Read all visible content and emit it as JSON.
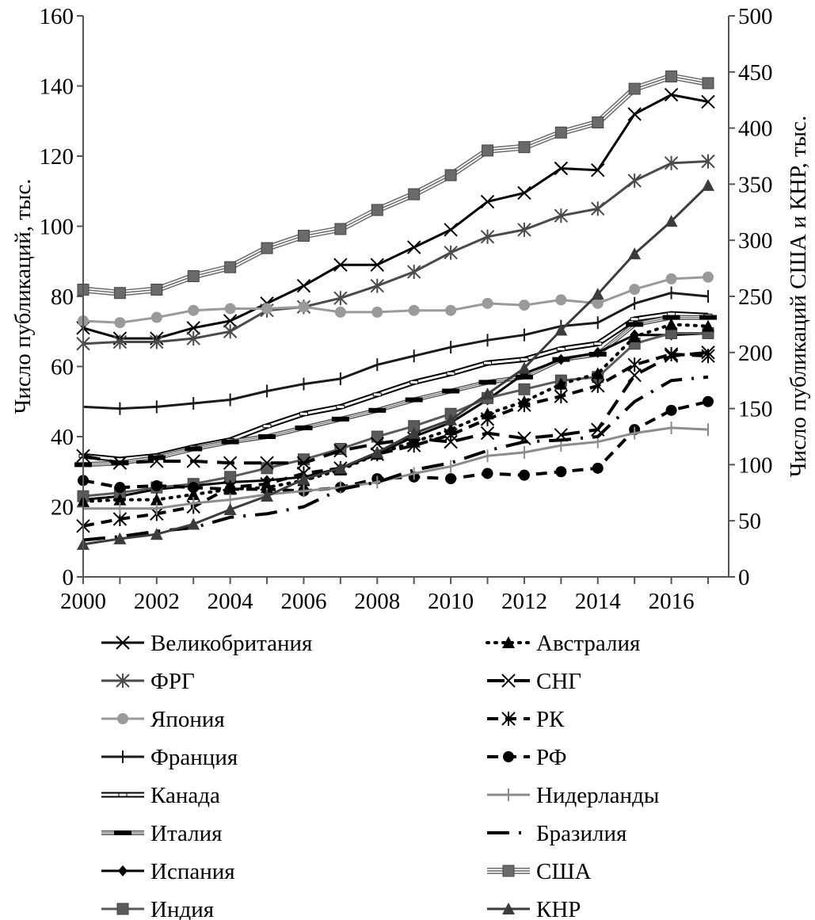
{
  "chart_data": {
    "type": "line",
    "title": "",
    "xlabel": "",
    "ylabel": "Число публикаций, тыс.",
    "y2label": "Число публикаций США и КНР, тыс.",
    "x": [
      2000,
      2001,
      2002,
      2003,
      2004,
      2005,
      2006,
      2007,
      2008,
      2009,
      2010,
      2011,
      2012,
      2013,
      2014,
      2015,
      2016,
      2017
    ],
    "x_ticks": [
      "2000",
      "2002",
      "2004",
      "2006",
      "2008",
      "2010",
      "2012",
      "2014",
      "2016"
    ],
    "xlim": [
      2000,
      2017
    ],
    "ylim": [
      0,
      160
    ],
    "y_ticks": [
      "0",
      "20",
      "40",
      "60",
      "80",
      "100",
      "120",
      "140",
      "160"
    ],
    "y2lim": [
      0,
      500
    ],
    "y2_ticks": [
      "0",
      "50",
      "100",
      "150",
      "200",
      "250",
      "300",
      "350",
      "400",
      "450",
      "500"
    ],
    "grid": false,
    "legend_position": "bottom",
    "series": [
      {
        "name": "Великобритания",
        "axis": "left",
        "color": "#000000",
        "style": "solid",
        "marker": "x",
        "values": [
          71,
          68,
          68,
          71,
          73,
          78,
          83,
          89,
          89,
          94,
          99,
          107,
          109.5,
          116.5,
          116,
          132,
          137.5,
          135.5
        ]
      },
      {
        "name": "ФРГ",
        "axis": "left",
        "color": "#4a4a4a",
        "style": "solid",
        "marker": "asterisk",
        "values": [
          66.5,
          67,
          67,
          68,
          70,
          76,
          77,
          79.5,
          83,
          87,
          92.5,
          97,
          99,
          103,
          105,
          113,
          118,
          118.5
        ]
      },
      {
        "name": "Япония",
        "axis": "left",
        "color": "#9a9a9a",
        "style": "solid",
        "marker": "circle",
        "values": [
          73,
          72.5,
          74,
          76,
          76.5,
          76.5,
          77,
          75.5,
          75.5,
          76,
          76,
          78,
          77.5,
          79,
          78,
          82,
          85,
          85.5
        ]
      },
      {
        "name": "Франция",
        "axis": "left",
        "color": "#1a1a1a",
        "style": "solid",
        "marker": "plus",
        "values": [
          48.5,
          48,
          48.5,
          49.5,
          50.5,
          53,
          55,
          56.5,
          60.5,
          63,
          65.5,
          67.5,
          69,
          71.5,
          72.5,
          78,
          81,
          80
        ]
      },
      {
        "name": "Канада",
        "axis": "left",
        "color": "#000000",
        "style": "double",
        "marker": "small-rect",
        "values": [
          34.5,
          33.5,
          34.5,
          37,
          39,
          43,
          46.5,
          48.5,
          52,
          55.5,
          58,
          61,
          62,
          65,
          66.5,
          73.5,
          75,
          74.5
        ]
      },
      {
        "name": "Италия",
        "axis": "left",
        "color": "#555555",
        "style": "double-thin",
        "marker": "dash",
        "values": [
          32,
          32.5,
          34,
          36.5,
          38.5,
          40,
          42.5,
          45,
          47.5,
          50.5,
          53,
          55.5,
          57,
          62,
          63.5,
          72,
          74,
          74
        ]
      },
      {
        "name": "Испания",
        "axis": "left",
        "color": "#000000",
        "style": "solid",
        "marker": "diamond",
        "values": [
          22,
          23,
          25,
          26,
          27,
          27.5,
          28.5,
          31,
          35,
          40,
          44,
          50.5,
          58,
          62,
          64,
          69,
          69,
          69.5
        ]
      },
      {
        "name": "Индия",
        "axis": "left",
        "color": "#5a5a5a",
        "style": "solid",
        "marker": "square",
        "values": [
          23,
          24,
          25.5,
          26.5,
          28.5,
          31,
          33.5,
          36.5,
          40,
          43,
          46.5,
          51,
          53.5,
          56,
          57,
          66.5,
          69.5,
          69.5
        ]
      },
      {
        "name": "Австралия",
        "axis": "left",
        "color": "#000000",
        "style": "dotted",
        "marker": "triangle",
        "values": [
          21.5,
          22,
          22,
          23.5,
          25,
          25.5,
          27.5,
          30.5,
          35,
          38.5,
          42,
          46.5,
          50,
          55,
          58,
          68.5,
          72,
          71.5
        ]
      },
      {
        "name": "СНГ",
        "axis": "left",
        "color": "#000000",
        "style": "long-dash",
        "marker": "x",
        "values": [
          34.5,
          32.5,
          33,
          33,
          32.5,
          32.5,
          32.5,
          36,
          38,
          39.5,
          38.5,
          41,
          39.5,
          40.5,
          42,
          57.5,
          63,
          64
        ]
      },
      {
        "name": "РК",
        "axis": "left",
        "color": "#000000",
        "style": "dash",
        "marker": "asterisk",
        "values": [
          14.5,
          16.5,
          18,
          20,
          25.5,
          26.5,
          29.5,
          31,
          35,
          37.5,
          40.5,
          45,
          49,
          51.5,
          54.5,
          60.5,
          63.5,
          63
        ]
      },
      {
        "name": "РФ",
        "axis": "left",
        "color": "#000000",
        "style": "dash",
        "marker": "circle",
        "values": [
          27.5,
          25.5,
          26,
          25.5,
          25,
          25,
          24.5,
          25.5,
          28,
          28.5,
          28,
          29.5,
          29,
          30,
          31,
          42,
          47.5,
          50
        ]
      },
      {
        "name": "Нидерланды",
        "axis": "left",
        "color": "#8c8c8c",
        "style": "solid",
        "marker": "plus",
        "values": [
          19.5,
          19.5,
          19.5,
          21,
          22,
          23.5,
          24.5,
          25.5,
          27,
          29.5,
          31.5,
          34.5,
          35.5,
          37.5,
          38.5,
          41,
          42.5,
          42
        ]
      },
      {
        "name": "Бразилия",
        "axis": "left",
        "color": "#000000",
        "style": "dash-dot",
        "marker": "none",
        "values": [
          10.5,
          11.5,
          13,
          14,
          17,
          18,
          20,
          25,
          27,
          30.5,
          32.5,
          36,
          38.5,
          39,
          40,
          50,
          56,
          57
        ]
      },
      {
        "name": "США",
        "axis": "right",
        "color": "#6a6a6a",
        "style": "triple",
        "marker": "square",
        "values": [
          256,
          253,
          256,
          268,
          276,
          293,
          304,
          310,
          327,
          341,
          358,
          380,
          383,
          396,
          405,
          435,
          446,
          440
        ]
      },
      {
        "name": "КНР",
        "axis": "right",
        "color": "#3c3c3c",
        "style": "solid",
        "marker": "triangle",
        "values": [
          29,
          34,
          38,
          47,
          60,
          72,
          87,
          97,
          111,
          128,
          140,
          163,
          186,
          220,
          252,
          288,
          317,
          349
        ]
      }
    ]
  }
}
